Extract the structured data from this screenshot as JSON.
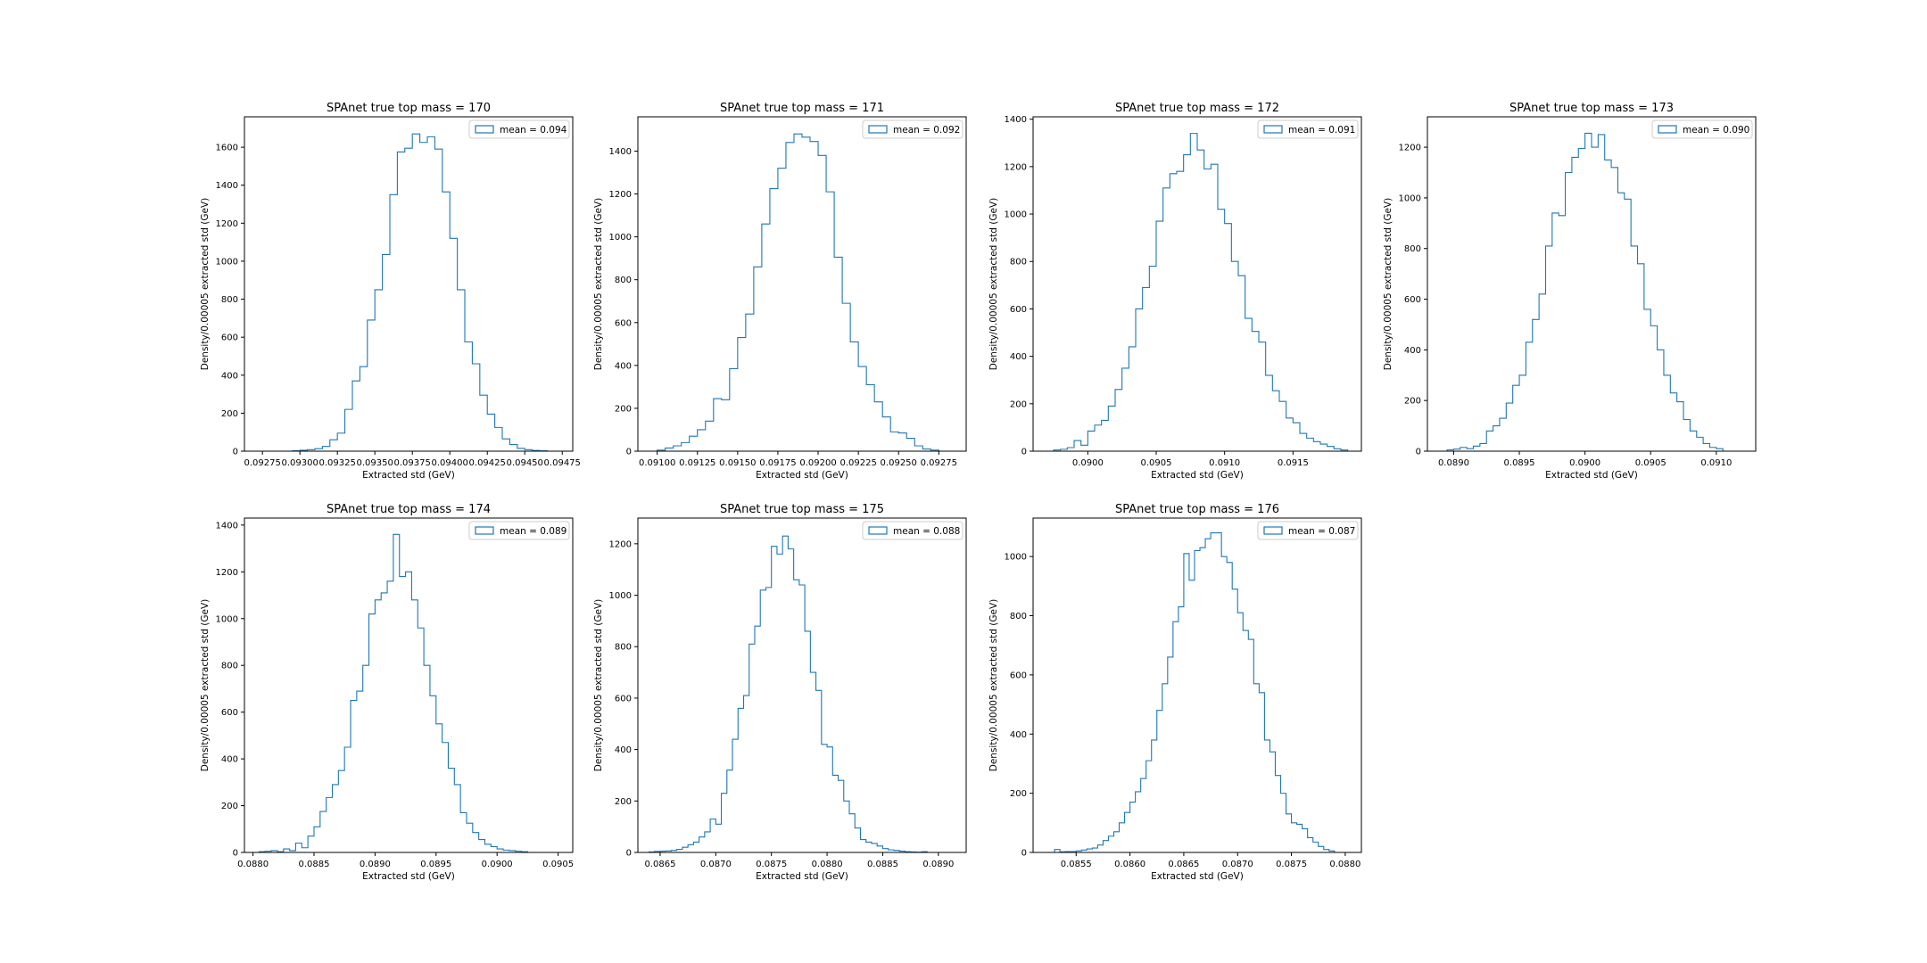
{
  "figure": {
    "colors": {
      "hist": "#1f77b4",
      "axes": "#000000",
      "background": "#ffffff"
    }
  },
  "chart_data": [
    {
      "type": "histogram",
      "title": "SPAnet true top mass = 170",
      "xlabel": "Extracted std (GeV)",
      "ylabel": "Density/0.00005 extracted std (GeV)",
      "legend": {
        "label": "mean = 0.094",
        "loc": "upper right"
      },
      "xlim": [
        0.09263,
        0.09482
      ],
      "ylim": [
        0,
        1760
      ],
      "xticks": [
        0.09275,
        0.093,
        0.09325,
        0.0935,
        0.09375,
        0.094,
        0.09425,
        0.0945,
        0.09475
      ],
      "xtick_labels": [
        "0.09275",
        "0.09300",
        "0.09325",
        "0.09350",
        "0.09375",
        "0.09400",
        "0.09425",
        "0.09450",
        "0.09475"
      ],
      "yticks": [
        0,
        200,
        400,
        600,
        800,
        1000,
        1200,
        1400,
        1600
      ],
      "ytick_labels": [
        "0",
        "200",
        "400",
        "600",
        "800",
        "1000",
        "1200",
        "1400",
        "1600"
      ],
      "bin_start": 0.0929,
      "bin_width": 5e-05,
      "counts": [
        0,
        2,
        5,
        8,
        13,
        25,
        60,
        95,
        220,
        370,
        445,
        690,
        850,
        1035,
        1350,
        1575,
        1595,
        1670,
        1625,
        1655,
        1590,
        1365,
        1120,
        850,
        575,
        460,
        295,
        195,
        125,
        65,
        35,
        15,
        8,
        4,
        2
      ]
    },
    {
      "type": "histogram",
      "title": "SPAnet true top mass = 171",
      "xlabel": "Extracted std (GeV)",
      "ylabel": "Density/0.00005 extracted std (GeV)",
      "legend": {
        "label": "mean = 0.092",
        "loc": "upper right"
      },
      "xlim": [
        0.09088,
        0.09292
      ],
      "ylim": [
        0,
        1560
      ],
      "xticks": [
        0.091,
        0.09125,
        0.0915,
        0.09175,
        0.092,
        0.09225,
        0.0925,
        0.09275
      ],
      "xtick_labels": [
        "0.09100",
        "0.09125",
        "0.09150",
        "0.09175",
        "0.09200",
        "0.09225",
        "0.09250",
        "0.09275"
      ],
      "yticks": [
        0,
        200,
        400,
        600,
        800,
        1000,
        1200,
        1400
      ],
      "ytick_labels": [
        "0",
        "200",
        "400",
        "600",
        "800",
        "1000",
        "1200",
        "1400"
      ],
      "bin_start": 0.091,
      "bin_width": 5e-05,
      "counts": [
        5,
        15,
        25,
        40,
        70,
        100,
        140,
        245,
        240,
        385,
        530,
        640,
        860,
        1060,
        1225,
        1320,
        1440,
        1480,
        1465,
        1445,
        1380,
        1210,
        905,
        690,
        510,
        395,
        310,
        230,
        160,
        90,
        85,
        60,
        25,
        10,
        5,
        0
      ]
    },
    {
      "type": "histogram",
      "title": "SPAnet true top mass = 172",
      "xlabel": "Extracted std (GeV)",
      "ylabel": "Density/0.00005 extracted std (GeV)",
      "legend": {
        "label": "mean = 0.091",
        "loc": "upper right"
      },
      "xlim": [
        0.0896,
        0.092
      ],
      "ylim": [
        0,
        1410
      ],
      "xticks": [
        0.09,
        0.0905,
        0.091,
        0.0915
      ],
      "xtick_labels": [
        "0.0900",
        "0.0905",
        "0.0910",
        "0.0915"
      ],
      "yticks": [
        0,
        200,
        400,
        600,
        800,
        1000,
        1200,
        1400
      ],
      "ytick_labels": [
        "0",
        "200",
        "400",
        "600",
        "800",
        "1000",
        "1200",
        "1400"
      ],
      "bin_start": 0.08975,
      "bin_width": 5e-05,
      "counts": [
        5,
        8,
        15,
        45,
        25,
        85,
        110,
        130,
        190,
        260,
        350,
        440,
        600,
        690,
        780,
        970,
        1110,
        1170,
        1180,
        1250,
        1340,
        1270,
        1190,
        1210,
        1020,
        960,
        800,
        740,
        560,
        505,
        460,
        320,
        255,
        210,
        140,
        120,
        75,
        55,
        40,
        30,
        20,
        10,
        5
      ]
    },
    {
      "type": "histogram",
      "title": "SPAnet true top mass = 173",
      "xlabel": "Extracted std (GeV)",
      "ylabel": "Density/0.00005 extracted std (GeV)",
      "legend": {
        "label": "mean = 0.090",
        "loc": "upper right"
      },
      "xlim": [
        0.0888,
        0.0913
      ],
      "ylim": [
        0,
        1320
      ],
      "xticks": [
        0.089,
        0.0895,
        0.09,
        0.0905,
        0.091
      ],
      "xtick_labels": [
        "0.0890",
        "0.0895",
        "0.0900",
        "0.0905",
        "0.0910"
      ],
      "yticks": [
        0,
        200,
        400,
        600,
        800,
        1000,
        1200
      ],
      "ytick_labels": [
        "0",
        "200",
        "400",
        "600",
        "800",
        "1000",
        "1200"
      ],
      "bin_start": 0.08895,
      "bin_width": 5e-05,
      "counts": [
        5,
        8,
        15,
        10,
        20,
        30,
        80,
        100,
        130,
        190,
        260,
        300,
        430,
        520,
        620,
        810,
        940,
        930,
        1100,
        1160,
        1195,
        1255,
        1200,
        1250,
        1150,
        1120,
        1020,
        995,
        810,
        740,
        560,
        495,
        400,
        300,
        230,
        195,
        125,
        80,
        55,
        30,
        15,
        10
      ]
    },
    {
      "type": "histogram",
      "title": "SPAnet true top mass = 174",
      "xlabel": "Extracted std (GeV)",
      "ylabel": "Density/0.00005 extracted std (GeV)",
      "legend": {
        "label": "mean = 0.089",
        "loc": "upper right"
      },
      "xlim": [
        0.08793,
        0.09062
      ],
      "ylim": [
        0,
        1430
      ],
      "xticks": [
        0.088,
        0.0885,
        0.089,
        0.0895,
        0.09,
        0.0905
      ],
      "xtick_labels": [
        "0.0880",
        "0.0885",
        "0.0890",
        "0.0895",
        "0.0900",
        "0.0905"
      ],
      "yticks": [
        0,
        200,
        400,
        600,
        800,
        1000,
        1200,
        1400
      ],
      "ytick_labels": [
        "0",
        "200",
        "400",
        "600",
        "800",
        "1000",
        "1200",
        "1400"
      ],
      "bin_start": 0.088,
      "bin_width": 5e-05,
      "counts": [
        0,
        3,
        5,
        8,
        3,
        15,
        8,
        40,
        20,
        70,
        110,
        175,
        235,
        290,
        350,
        450,
        650,
        690,
        800,
        1020,
        1080,
        1110,
        1160,
        1360,
        1180,
        1200,
        1080,
        960,
        800,
        670,
        550,
        470,
        360,
        290,
        170,
        125,
        85,
        55,
        35,
        25,
        15,
        10,
        8,
        5,
        3,
        0
      ]
    },
    {
      "type": "histogram",
      "title": "SPAnet true top mass = 175",
      "xlabel": "Extracted std (GeV)",
      "ylabel": "Density/0.00005 extracted std (GeV)",
      "legend": {
        "label": "mean = 0.088",
        "loc": "upper right"
      },
      "xlim": [
        0.0863,
        0.08925
      ],
      "ylim": [
        0,
        1300
      ],
      "xticks": [
        0.0865,
        0.087,
        0.0875,
        0.088,
        0.0885,
        0.089
      ],
      "xtick_labels": [
        "0.0865",
        "0.0870",
        "0.0875",
        "0.0880",
        "0.0885",
        "0.0890"
      ],
      "yticks": [
        0,
        200,
        400,
        600,
        800,
        1000,
        1200
      ],
      "ytick_labels": [
        "0",
        "200",
        "400",
        "600",
        "800",
        "1000",
        "1200"
      ],
      "bin_start": 0.0864,
      "bin_width": 5e-05,
      "counts": [
        2,
        4,
        5,
        6,
        8,
        12,
        20,
        30,
        40,
        60,
        80,
        130,
        110,
        230,
        320,
        440,
        560,
        610,
        810,
        880,
        1020,
        1030,
        1190,
        1160,
        1230,
        1180,
        1060,
        1040,
        860,
        700,
        630,
        420,
        410,
        300,
        280,
        200,
        150,
        95,
        50,
        40,
        35,
        25,
        15,
        10,
        8,
        5,
        3,
        2,
        1,
        3,
        0
      ]
    },
    {
      "type": "histogram",
      "title": "SPAnet true top mass = 176",
      "xlabel": "Extracted std (GeV)",
      "ylabel": "Density/0.00005 extracted std (GeV)",
      "legend": {
        "label": "mean = 0.087",
        "loc": "upper right"
      },
      "xlim": [
        0.0851,
        0.08815
      ],
      "ylim": [
        0,
        1130
      ],
      "xticks": [
        0.0855,
        0.086,
        0.0865,
        0.087,
        0.0875,
        0.088
      ],
      "xtick_labels": [
        "0.0855",
        "0.0860",
        "0.0865",
        "0.0870",
        "0.0875",
        "0.0880"
      ],
      "yticks": [
        0,
        200,
        400,
        600,
        800,
        1000
      ],
      "ytick_labels": [
        "0",
        "200",
        "400",
        "600",
        "800",
        "1000"
      ],
      "bin_start": 0.0853,
      "bin_width": 5e-05,
      "counts": [
        10,
        2,
        3,
        3,
        5,
        8,
        12,
        15,
        25,
        40,
        55,
        70,
        100,
        135,
        170,
        205,
        250,
        310,
        380,
        480,
        570,
        660,
        780,
        830,
        1010,
        920,
        1020,
        1030,
        1060,
        1080,
        1080,
        1000,
        980,
        890,
        810,
        750,
        720,
        570,
        540,
        380,
        340,
        260,
        200,
        130,
        100,
        95,
        80,
        50,
        35,
        20,
        10,
        5
      ]
    }
  ]
}
